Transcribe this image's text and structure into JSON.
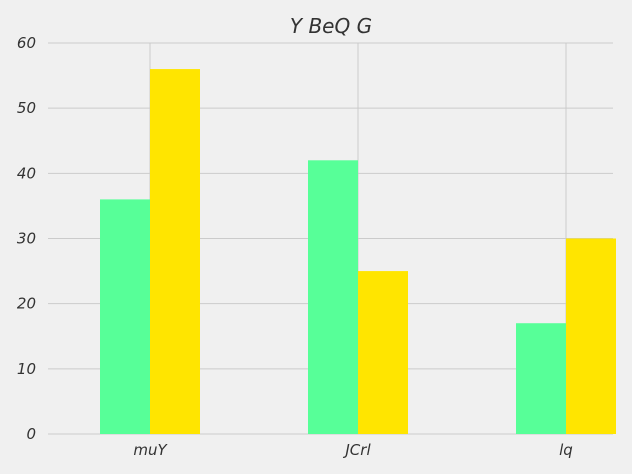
{
  "chart_data": {
    "type": "bar",
    "title": "Y BeQ G",
    "xlabel": "",
    "ylabel": "",
    "categories": [
      "muY",
      "JCrl",
      "lq"
    ],
    "series": [
      {
        "values": [
          36,
          42,
          17
        ],
        "color": "#57ff98"
      },
      {
        "values": [
          56,
          25,
          30
        ],
        "color": "#ffe500"
      }
    ],
    "ylim": [
      0,
      60
    ],
    "yticks": [
      "0",
      "10",
      "20",
      "30",
      "40",
      "50",
      "60"
    ],
    "grid": true,
    "legend": "none",
    "background": "#f0f0f0"
  }
}
